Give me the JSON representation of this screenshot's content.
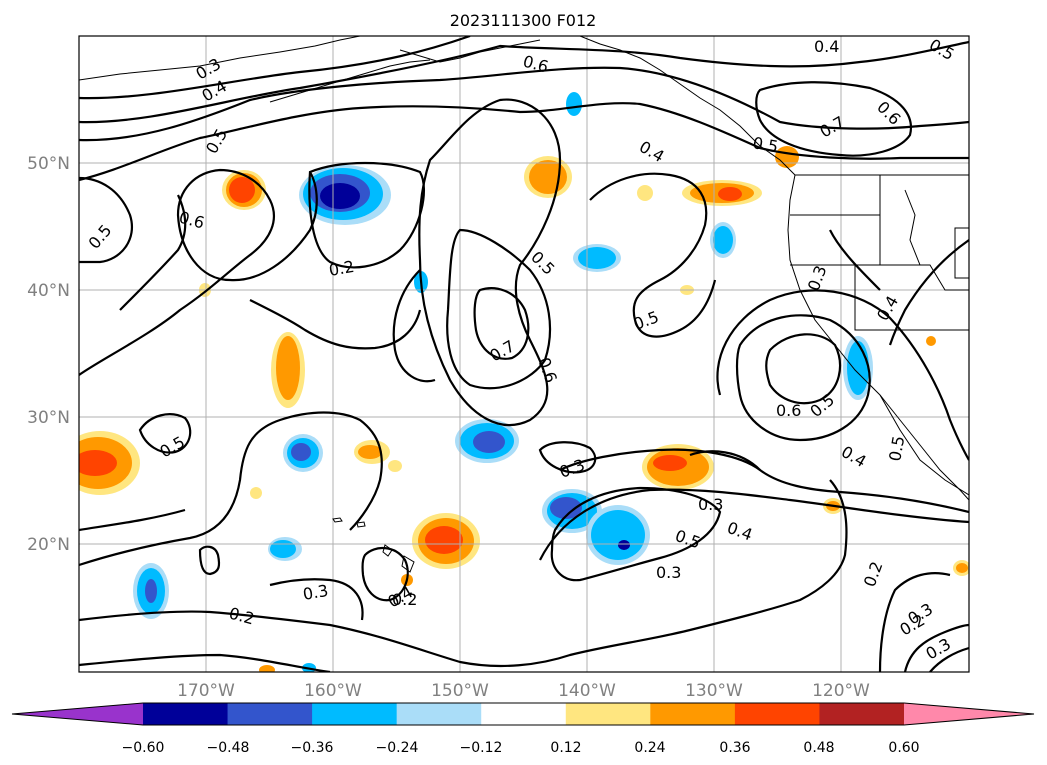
{
  "title": "2023111300 F012",
  "lat_labels": [
    "50°N",
    "40°N",
    "30°N",
    "20°N"
  ],
  "lon_labels": [
    "170°W",
    "160°W",
    "150°W",
    "140°W",
    "130°W",
    "120°W"
  ],
  "colorbar": {
    "ticks": [
      "−0.60",
      "−0.48",
      "−0.36",
      "−0.24",
      "−0.12",
      "0.12",
      "0.24",
      "0.36",
      "0.48",
      "0.60"
    ],
    "colors": [
      "#9933cc",
      "#000099",
      "#3355cc",
      "#00bbff",
      "#aaddf8",
      "#ffffff",
      "#ffe680",
      "#ff9900",
      "#ff4400",
      "#b22222",
      "#ff88aa"
    ]
  },
  "contour_labels": [
    "0.3",
    "0.4",
    "0.5",
    "0.6",
    "0.6",
    "0.5",
    "0.2",
    "0.7",
    "0.6",
    "0.5",
    "0.5",
    "0.4",
    "0.6",
    "0.7",
    "0.5",
    "0.4",
    "0.5",
    "0.6",
    "0.5",
    "0.4",
    "0.3",
    "0.4",
    "0.5",
    "0.3",
    "0.4",
    "0.3",
    "0.2",
    "0.3",
    "0.2",
    "0.5",
    "0.3",
    "0.2",
    "0.5",
    "0.4",
    "0.3",
    "0.2",
    "0.3"
  ]
}
